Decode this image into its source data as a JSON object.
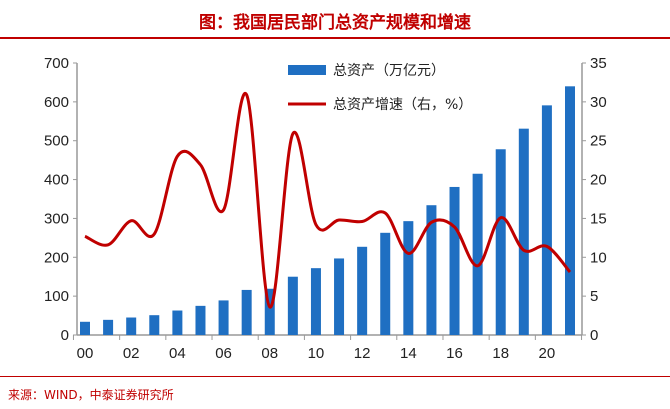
{
  "title": "图：我国居民部门总资产规模和增速",
  "source": "来源：WIND，中泰证券研究所",
  "chart_data": {
    "type": "bar+line",
    "categories": [
      "00",
      "01",
      "02",
      "03",
      "04",
      "05",
      "06",
      "07",
      "08",
      "09",
      "10",
      "11",
      "12",
      "13",
      "14",
      "15",
      "16",
      "17",
      "18",
      "19",
      "20",
      "21"
    ],
    "x_tick_labels": [
      "00",
      "02",
      "04",
      "06",
      "08",
      "10",
      "12",
      "14",
      "16",
      "18",
      "20"
    ],
    "series": [
      {
        "name": "总资产（万亿元）",
        "type": "bar",
        "axis": "left",
        "color": "#1f6fc2",
        "values": [
          34,
          39,
          45,
          51,
          63,
          75,
          89,
          116,
          119,
          150,
          172,
          197,
          227,
          263,
          293,
          334,
          381,
          415,
          478,
          531,
          591,
          640
        ]
      },
      {
        "name": "总资产增速（右，%）",
        "type": "line",
        "axis": "right",
        "color": "#c00000",
        "values": [
          12.7,
          11.6,
          14.7,
          13.0,
          23.0,
          21.9,
          16.1,
          30.9,
          3.6,
          25.9,
          14.2,
          14.8,
          14.6,
          15.7,
          10.5,
          14.5,
          13.9,
          8.9,
          15.1,
          10.9,
          11.4,
          8.1
        ]
      }
    ],
    "ylim_left": [
      0,
      700
    ],
    "yticks_left": [
      "0",
      "100",
      "200",
      "300",
      "400",
      "500",
      "600",
      "700"
    ],
    "ylim_right": [
      0,
      35
    ],
    "yticks_right": [
      "0",
      "5",
      "10",
      "15",
      "20",
      "25",
      "30",
      "35"
    ],
    "grid": false,
    "legend": "top-right"
  }
}
